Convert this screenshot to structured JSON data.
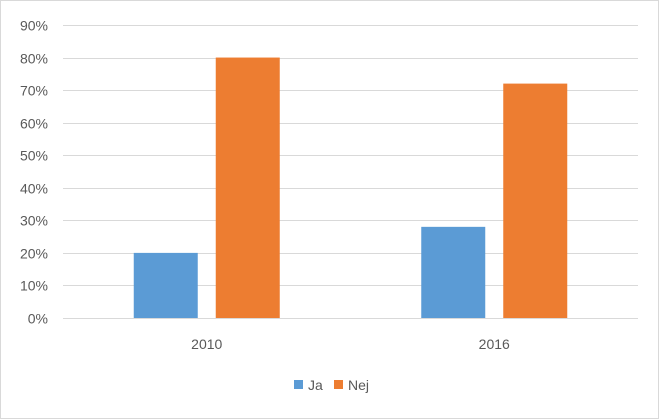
{
  "chart_data": {
    "type": "bar",
    "categories": [
      "2010",
      "2016"
    ],
    "series": [
      {
        "name": "Ja",
        "values": [
          0.2,
          0.28
        ],
        "color": "#5b9bd5"
      },
      {
        "name": "Nej",
        "values": [
          0.8,
          0.72
        ],
        "color": "#ed7d31"
      }
    ],
    "ylim": [
      0,
      0.9
    ],
    "yticks": [
      0,
      0.1,
      0.2,
      0.3,
      0.4,
      0.5,
      0.6,
      0.7,
      0.8,
      0.9
    ],
    "ytick_labels": [
      "0%",
      "10%",
      "20%",
      "30%",
      "40%",
      "50%",
      "60%",
      "70%",
      "80%",
      "90%"
    ],
    "grid": true,
    "legend_position": "bottom",
    "gridline_color": "#d9d9d9",
    "text_color": "#595959"
  }
}
